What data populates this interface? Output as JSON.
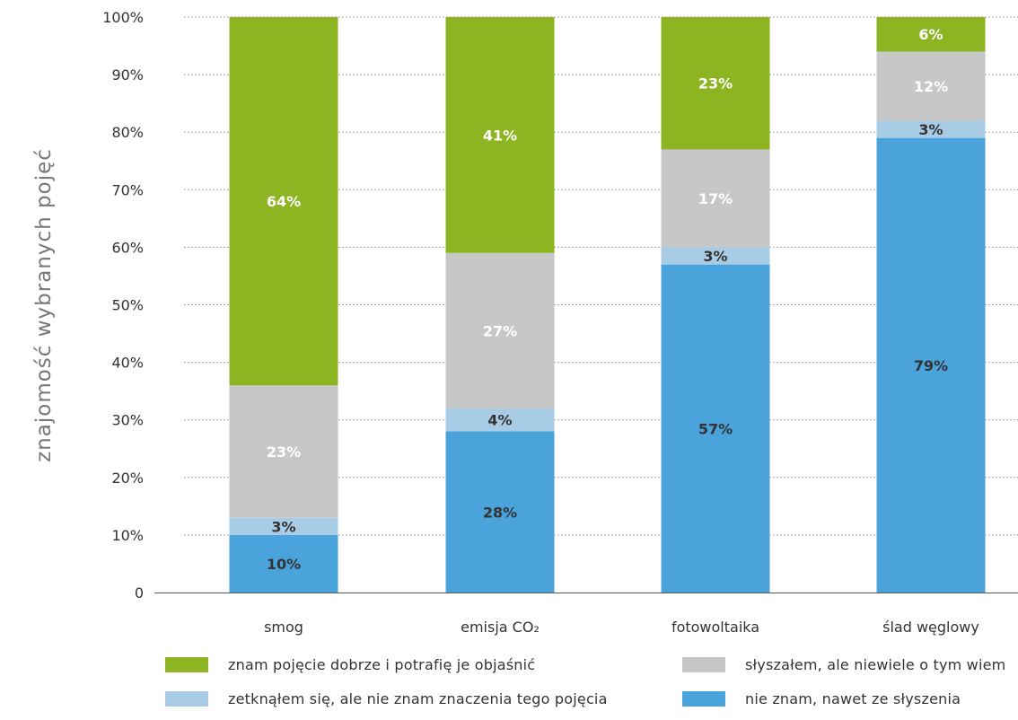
{
  "chart_data": {
    "type": "bar",
    "stacked": true,
    "ylabel": "znajomość wybranych pojęć",
    "ylim": [
      0,
      100
    ],
    "y_ticks": [
      "0",
      "10%",
      "20%",
      "30%",
      "40%",
      "50%",
      "60%",
      "70%",
      "80%",
      "90%",
      "100%"
    ],
    "grid": "horizontal dotted",
    "categories": [
      "smog",
      "emisja CO₂",
      "fotowoltaika",
      "ślad węglowy"
    ],
    "series": [
      {
        "name": "nie znam, nawet ze słyszenia",
        "color": "#4aa3db",
        "label_color": "#333333",
        "values": [
          10,
          28,
          57,
          79
        ],
        "labels": [
          "10%",
          "28%",
          "57%",
          "79%"
        ]
      },
      {
        "name": "zetknąłem się, ale nie znam znaczenia tego pojęcia",
        "color": "#a9cce6",
        "label_color": "#333333",
        "values": [
          3,
          4,
          3,
          3
        ],
        "labels": [
          "3%",
          "4%",
          "3%",
          "3%"
        ]
      },
      {
        "name": "słyszałem, ale niewiele o tym wiem",
        "color": "#c6c7c6",
        "label_color": "#ffffff",
        "values": [
          23,
          27,
          17,
          12
        ],
        "labels": [
          "23%",
          "27%",
          "17%",
          "12%"
        ]
      },
      {
        "name": "znam pojęcie dobrze i potrafię je objaśnić",
        "color": "#8db522",
        "label_color": "#ffffff",
        "values": [
          64,
          41,
          23,
          6
        ],
        "labels": [
          "64%",
          "41%",
          "23%",
          "6%"
        ]
      }
    ],
    "legend_order": [
      3,
      2,
      1,
      0
    ],
    "legend_placement": "bottom"
  }
}
